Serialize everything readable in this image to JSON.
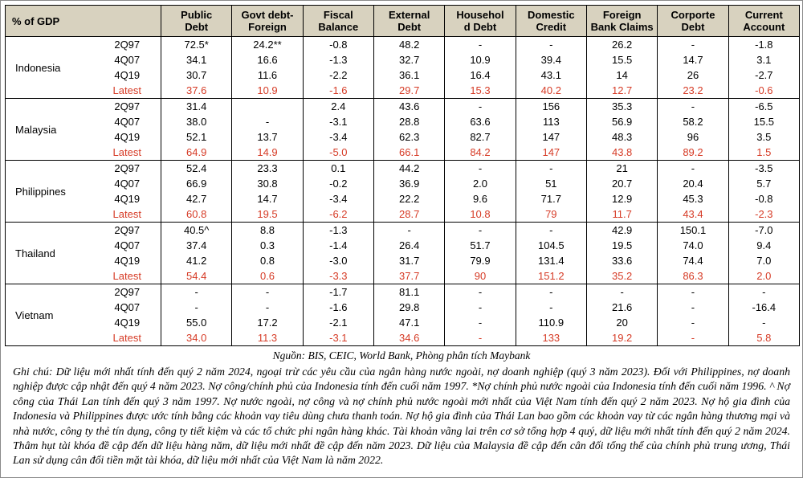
{
  "table": {
    "corner_label": "% of GDP",
    "columns": [
      "Public\nDebt",
      "Govt debt-\nForeign",
      "Fiscal\nBalance",
      "External\nDebt",
      "Househol\nd Debt",
      "Domestic\nCredit",
      "Foreign\nBank Claims",
      "Corporte\nDebt",
      "Current\nAccount"
    ],
    "countries": [
      {
        "name": "Indonesia",
        "rows": [
          {
            "period": "2Q97",
            "highlight": false,
            "values": [
              "72.5*",
              "24.2**",
              "-0.8",
              "48.2",
              "-",
              "-",
              "26.2",
              "-",
              "-1.8"
            ]
          },
          {
            "period": "4Q07",
            "highlight": false,
            "values": [
              "34.1",
              "16.6",
              "-1.3",
              "32.7",
              "10.9",
              "39.4",
              "15.5",
              "14.7",
              "3.1"
            ]
          },
          {
            "period": "4Q19",
            "highlight": false,
            "values": [
              "30.7",
              "11.6",
              "-2.2",
              "36.1",
              "16.4",
              "43.1",
              "14",
              "26",
              "-2.7"
            ]
          },
          {
            "period": "Latest",
            "highlight": true,
            "values": [
              "37.6",
              "10.9",
              "-1.6",
              "29.7",
              "15.3",
              "40.2",
              "12.7",
              "23.2",
              "-0.6"
            ]
          }
        ]
      },
      {
        "name": "Malaysia",
        "rows": [
          {
            "period": "2Q97",
            "highlight": false,
            "values": [
              "31.4",
              "",
              "2.4",
              "43.6",
              "-",
              "156",
              "35.3",
              "-",
              "-6.5"
            ]
          },
          {
            "period": "4Q07",
            "highlight": false,
            "values": [
              "38.0",
              "-",
              "-3.1",
              "28.8",
              "63.6",
              "113",
              "56.9",
              "58.2",
              "15.5"
            ]
          },
          {
            "period": "4Q19",
            "highlight": false,
            "values": [
              "52.1",
              "13.7",
              "-3.4",
              "62.3",
              "82.7",
              "147",
              "48.3",
              "96",
              "3.5"
            ]
          },
          {
            "period": "Latest",
            "highlight": true,
            "values": [
              "64.9",
              "14.9",
              "-5.0",
              "66.1",
              "84.2",
              "147",
              "43.8",
              "89.2",
              "1.5"
            ]
          }
        ]
      },
      {
        "name": "Philippines",
        "rows": [
          {
            "period": "2Q97",
            "highlight": false,
            "values": [
              "52.4",
              "23.3",
              "0.1",
              "44.2",
              "-",
              "-",
              "21",
              "-",
              "-3.5"
            ]
          },
          {
            "period": "4Q07",
            "highlight": false,
            "values": [
              "66.9",
              "30.8",
              "-0.2",
              "36.9",
              "2.0",
              "51",
              "20.7",
              "20.4",
              "5.7"
            ]
          },
          {
            "period": "4Q19",
            "highlight": false,
            "values": [
              "42.7",
              "14.7",
              "-3.4",
              "22.2",
              "9.6",
              "71.7",
              "12.9",
              "45.3",
              "-0.8"
            ]
          },
          {
            "period": "Latest",
            "highlight": true,
            "values": [
              "60.8",
              "19.5",
              "-6.2",
              "28.7",
              "10.8",
              "79",
              "11.7",
              "43.4",
              "-2.3"
            ]
          }
        ]
      },
      {
        "name": "Thailand",
        "rows": [
          {
            "period": "2Q97",
            "highlight": false,
            "values": [
              "40.5^",
              "8.8",
              "-1.3",
              "-",
              "-",
              "-",
              "42.9",
              "150.1",
              "-7.0"
            ]
          },
          {
            "period": "4Q07",
            "highlight": false,
            "values": [
              "37.4",
              "0.3",
              "-1.4",
              "26.4",
              "51.7",
              "104.5",
              "19.5",
              "74.0",
              "9.4"
            ]
          },
          {
            "period": "4Q19",
            "highlight": false,
            "values": [
              "41.2",
              "0.8",
              "-3.0",
              "31.7",
              "79.9",
              "131.4",
              "33.6",
              "74.4",
              "7.0"
            ]
          },
          {
            "period": "Latest",
            "highlight": true,
            "values": [
              "54.4",
              "0.6",
              "-3.3",
              "37.7",
              "90",
              "151.2",
              "35.2",
              "86.3",
              "2.0"
            ]
          }
        ]
      },
      {
        "name": "Vietnam",
        "rows": [
          {
            "period": "2Q97",
            "highlight": false,
            "values": [
              "-",
              "-",
              "-1.7",
              "81.1",
              "-",
              "-",
              "-",
              "-",
              "-"
            ]
          },
          {
            "period": "4Q07",
            "highlight": false,
            "values": [
              "-",
              "-",
              "-1.6",
              "29.8",
              "-",
              "-",
              "21.6",
              "-",
              "-16.4"
            ]
          },
          {
            "period": "4Q19",
            "highlight": false,
            "values": [
              "55.0",
              "17.2",
              "-2.1",
              "47.1",
              "-",
              "110.9",
              "20",
              "-",
              "-"
            ]
          },
          {
            "period": "Latest",
            "highlight": true,
            "values": [
              "34.0",
              "11.3",
              "-3.1",
              "34.6",
              "-",
              "133",
              "19.2",
              "-",
              "5.8"
            ]
          }
        ]
      }
    ]
  },
  "source": "Nguồn: BIS, CEIC, World Bank, Phòng phân tích Maybank",
  "note": "Ghi chú: Dữ liệu mới nhất tính đến quý 2 năm 2024, ngoại trừ các yêu cầu của ngân hàng nước ngoài, nợ doanh nghiệp (quý 3 năm 2023). Đối với Philippines, nợ doanh nghiệp được cập nhật đến quý 4 năm 2023. Nợ công/chính phủ của Indonesia tính đến cuối năm 1997. *Nợ chính phủ nước ngoài của Indonesia tính đến cuối năm 1996. ^ Nợ công của Thái Lan tính đến quý 3 năm 1997. Nợ nước ngoài, nợ công và nợ chính phủ nước ngoài mới nhất của Việt Nam tính đến quý 2 năm 2023. Nợ hộ gia đình của Indonesia và Philippines được ước tính bằng các khoản vay tiêu dùng chưa thanh toán. Nợ hộ gia đình của Thái Lan bao gồm các khoản vay từ các ngân hàng thương mại và nhà nước, công ty thẻ tín dụng, công ty tiết kiệm và các tổ chức phi ngân hàng khác. Tài khoản vãng lai trên cơ sở tổng hợp 4 quý, dữ liệu mới nhất tính đến quý 2 năm 2024. Thâm hụt tài khóa đề cập đến dữ liệu hàng năm, dữ liệu mới nhất đề cập đến năm 2023. Dữ liệu của Malaysia đề cập đến cân đối tổng thể của chính phủ trung ương, Thái Lan sử dụng cân đối tiền mặt tài khóa, dữ liệu mới nhất của Việt Nam là năm 2022.",
  "colors": {
    "header_bg": "#d8d2bf",
    "latest_red": "#d63b26",
    "border": "#000000"
  }
}
